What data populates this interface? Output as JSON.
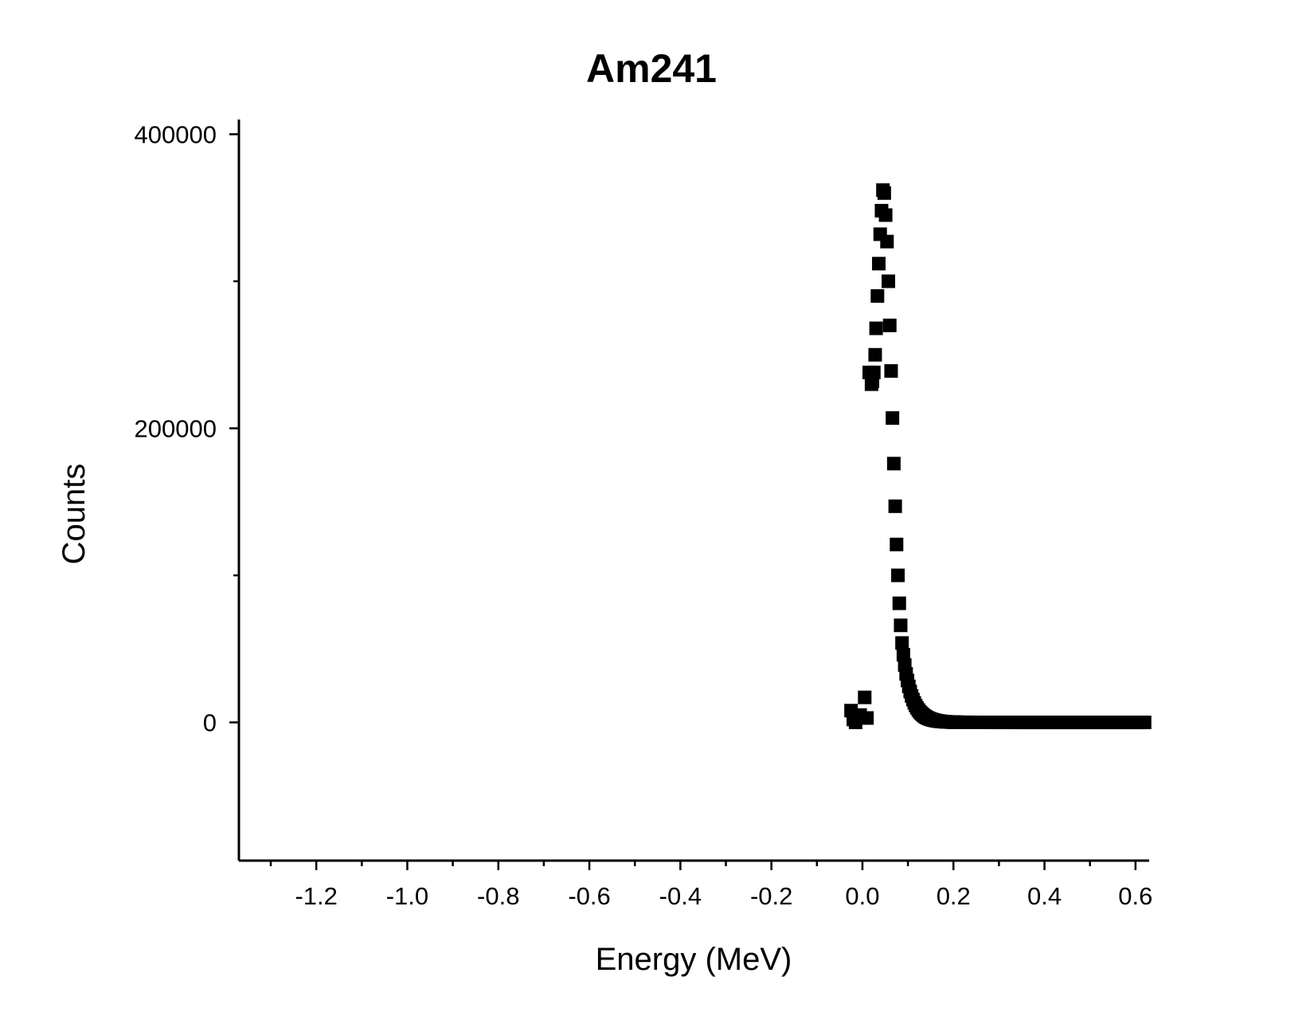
{
  "chart_data": {
    "type": "scatter",
    "title": "Am241",
    "xlabel": "Energy (MeV)",
    "ylabel": "Counts",
    "xlim": [
      -1.37,
      0.63
    ],
    "ylim": [
      -94000,
      410000
    ],
    "x_ticks": [
      -1.2,
      -1.0,
      -0.8,
      -0.6,
      -0.4,
      -0.2,
      0.0,
      0.2,
      0.4,
      0.6
    ],
    "x_tick_labels": [
      "-1.2",
      "-1.0",
      "-0.8",
      "-0.6",
      "-0.4",
      "-0.2",
      "0.0",
      "0.2",
      "0.4",
      "0.6"
    ],
    "x_minor_ticks": [
      -1.3,
      -1.1,
      -0.9,
      -0.7,
      -0.5,
      -0.3,
      -0.1,
      0.1,
      0.3,
      0.5
    ],
    "y_ticks": [
      0,
      200000,
      400000
    ],
    "y_tick_labels": [
      "0",
      "200000",
      "400000"
    ],
    "y_minor_ticks": [
      100000,
      300000
    ],
    "marker": "square",
    "marker_color": "#000000",
    "grid": false,
    "legend": "none",
    "series": [
      {
        "x": [
          -0.025,
          -0.02,
          -0.015,
          -0.01,
          -0.005,
          0.0,
          0.005,
          0.01,
          0.015,
          0.02,
          0.022,
          0.025,
          0.028,
          0.03,
          0.033,
          0.036,
          0.039,
          0.042,
          0.045,
          0.048,
          0.051,
          0.054,
          0.057,
          0.06,
          0.063,
          0.066,
          0.069,
          0.072,
          0.075,
          0.078,
          0.081,
          0.084,
          0.087,
          0.09,
          0.093,
          0.096,
          0.099,
          0.102,
          0.105,
          0.108,
          0.111,
          0.114,
          0.117,
          0.12,
          0.123,
          0.126,
          0.129,
          0.132,
          0.135,
          0.138,
          0.141,
          0.144,
          0.147,
          0.15,
          0.153,
          0.156,
          0.159,
          0.162,
          0.165,
          0.168,
          0.171,
          0.174,
          0.177,
          0.18,
          0.183,
          0.186,
          0.189,
          0.192,
          0.195,
          0.198,
          0.201,
          0.204,
          0.207,
          0.21,
          0.22,
          0.23,
          0.24,
          0.25,
          0.26,
          0.27,
          0.28,
          0.29,
          0.3,
          0.31,
          0.32,
          0.33,
          0.34,
          0.35,
          0.36,
          0.37,
          0.38,
          0.39,
          0.4,
          0.41,
          0.42,
          0.43,
          0.44,
          0.45,
          0.46,
          0.47,
          0.48,
          0.49,
          0.5,
          0.51,
          0.52,
          0.53,
          0.54,
          0.55,
          0.56,
          0.57,
          0.58,
          0.59,
          0.6,
          0.61,
          0.62
        ],
        "y": [
          8000,
          2000,
          0,
          4000,
          5000,
          3000,
          17000,
          3000,
          238000,
          230000,
          232000,
          238000,
          250000,
          268000,
          290000,
          312000,
          332000,
          348000,
          362000,
          360000,
          345000,
          327000,
          300000,
          270000,
          239000,
          207000,
          176000,
          147000,
          121000,
          100000,
          81000,
          66000,
          54000,
          46000,
          39000,
          33000,
          28500,
          24500,
          21000,
          18000,
          15500,
          13300,
          11400,
          9800,
          8400,
          7200,
          6200,
          5300,
          4600,
          3900,
          3400,
          2900,
          2500,
          2150,
          1850,
          1600,
          1380,
          1190,
          1020,
          880,
          760,
          650,
          560,
          480,
          420,
          360,
          310,
          270,
          230,
          200,
          170,
          150,
          130,
          110,
          80,
          60,
          45,
          35,
          28,
          22,
          18,
          15,
          12,
          10,
          8,
          7,
          6,
          5,
          4,
          4,
          3,
          3,
          2,
          2,
          2,
          1,
          1,
          1,
          1,
          1,
          1,
          1,
          0,
          0,
          0,
          0,
          0,
          0,
          0,
          0,
          0,
          0,
          0,
          0,
          0
        ]
      }
    ]
  }
}
